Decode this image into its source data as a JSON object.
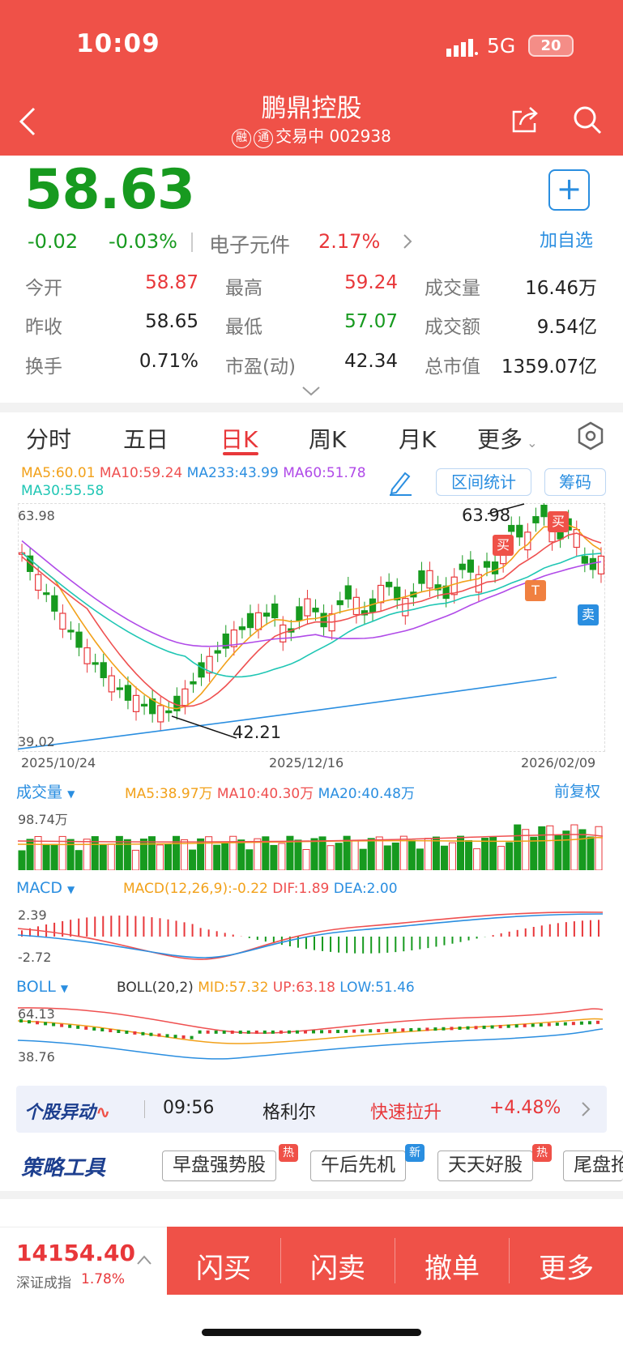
{
  "status": {
    "time": "10:09",
    "network": "5G",
    "battery": "20"
  },
  "header": {
    "title": "鹏鼎控股",
    "badge1": "融",
    "badge2": "通",
    "status": "交易中",
    "code": "002938"
  },
  "quote": {
    "price": "58.63",
    "change": "-0.02",
    "change_pct": "-0.03%",
    "sector": "电子元件",
    "sector_pct": "2.17%",
    "add_label": "加自选",
    "stats": [
      {
        "label": "今开",
        "value": "58.87",
        "color": "red"
      },
      {
        "label": "最高",
        "value": "59.24",
        "color": "red"
      },
      {
        "label": "成交量",
        "value": "16.46万",
        "color": "black"
      },
      {
        "label": "昨收",
        "value": "58.65",
        "color": "black"
      },
      {
        "label": "最低",
        "value": "57.07",
        "color": "green"
      },
      {
        "label": "成交额",
        "value": "9.54亿",
        "color": "black"
      },
      {
        "label": "换手",
        "value": "0.71%",
        "color": "black"
      },
      {
        "label": "市盈(动)",
        "value": "42.34",
        "color": "black"
      },
      {
        "label": "总市值",
        "value": "1359.07亿",
        "color": "black"
      }
    ]
  },
  "tabs": [
    "分时",
    "五日",
    "日K",
    "周K",
    "月K",
    "更多"
  ],
  "chart": {
    "ma_legend": [
      "MA5:60.01",
      "MA10:59.24",
      "MA233:43.99",
      "MA60:51.78",
      "MA30:55.58"
    ],
    "range_btn": "区间统计",
    "chips_btn": "筹码",
    "y_high": "63.98",
    "y_low": "39.02",
    "max_label": "63.98",
    "min_label": "42.21",
    "buy": "买",
    "sell": "卖",
    "t_mark": "T",
    "dates": [
      "2025/10/24",
      "2025/12/16",
      "2026/02/09"
    ],
    "vol_title": "成交量",
    "vol_legend": [
      "MA5:38.97万",
      "MA10:40.30万",
      "MA20:40.48万"
    ],
    "vol_max": "98.74万",
    "adj": "前复权",
    "macd_title": "MACD",
    "macd_legend": [
      "MACD(12,26,9):-0.22",
      "DIF:1.89",
      "DEA:2.00"
    ],
    "macd_max": "2.39",
    "macd_min": "-2.72",
    "boll_title": "BOLL",
    "boll_legend": [
      "BOLL(20,2)",
      "MID:57.32",
      "UP:63.18",
      "LOW:51.46"
    ],
    "boll_max": "64.13",
    "boll_min": "38.76"
  },
  "chart_data": {
    "type": "candlestick",
    "x_range": [
      "2025/10/24",
      "2026/02/09"
    ],
    "ylim": [
      39.02,
      63.98
    ],
    "max": 63.98,
    "min": 42.21,
    "last_close": 58.63,
    "volume_max": "98.74万",
    "macd_range": [
      -2.72,
      2.39
    ],
    "boll_range": [
      38.76,
      64.13
    ]
  },
  "ticker": {
    "label": "个股异动",
    "time": "09:56",
    "name": "格利尔",
    "event": "快速拉升",
    "pct": "+4.48%"
  },
  "strategy": {
    "label": "策略工具",
    "tools": [
      {
        "name": "早盘强势股",
        "tag": "热"
      },
      {
        "name": "午后先机",
        "tag": "新"
      },
      {
        "name": "天天好股",
        "tag": "热"
      },
      {
        "name": "尾盘抢",
        "tag": ""
      }
    ]
  },
  "bottom": {
    "index_value": "14154.40",
    "index_name": "深证成指",
    "index_pct": "1.78%",
    "actions": [
      "闪买",
      "闪卖",
      "撤单",
      "更多"
    ]
  },
  "colors": {
    "header": "#ef5148",
    "up": "#e8373a",
    "down": "#179a1f",
    "accent": "#2a8ee0"
  }
}
